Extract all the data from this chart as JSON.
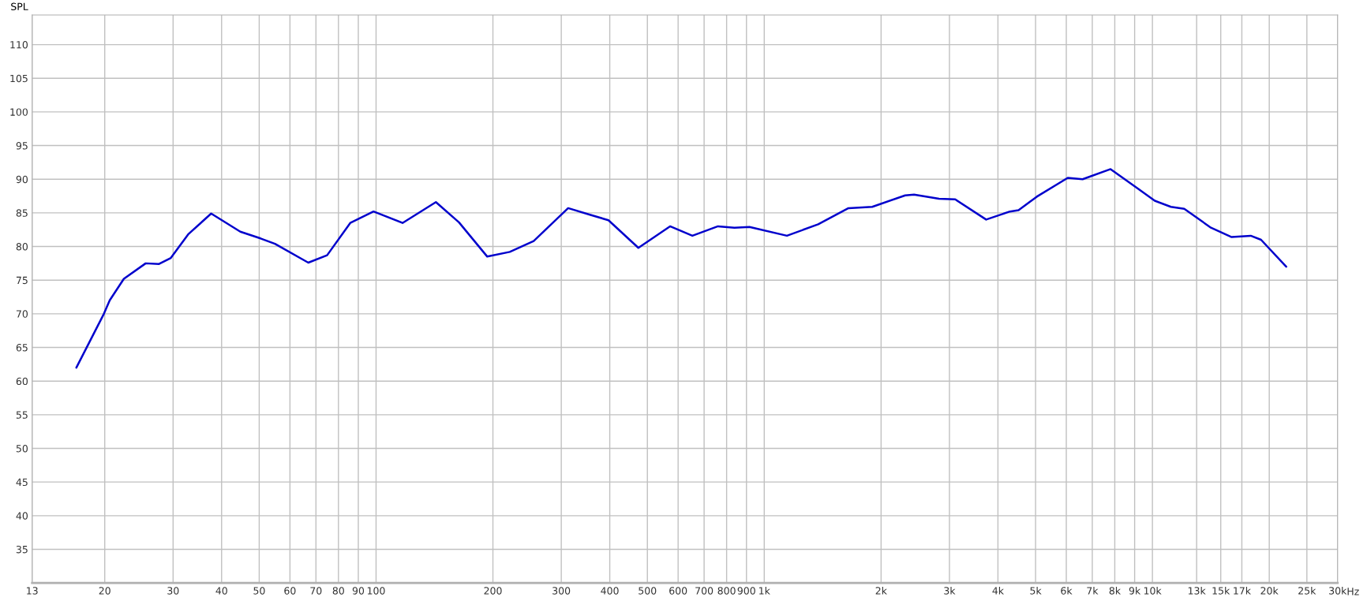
{
  "chart_data": {
    "type": "line",
    "ylabel": "SPL",
    "log": "x",
    "grid": true,
    "line_style": "solid",
    "marker": "none",
    "xlim": [
      13,
      30000
    ],
    "ylim": [
      30,
      114.4
    ],
    "xticks": [
      13,
      20,
      30,
      40,
      50,
      60,
      70,
      80,
      90,
      100,
      200,
      300,
      400,
      500,
      600,
      700,
      800,
      900,
      {
        "value": 1000,
        "label": "1k"
      },
      {
        "value": 2000,
        "label": "2k"
      },
      {
        "value": 3000,
        "label": "3k"
      },
      {
        "value": 4000,
        "label": "4k"
      },
      {
        "value": 5000,
        "label": "5k"
      },
      {
        "value": 6000,
        "label": "6k"
      },
      {
        "value": 7000,
        "label": "7k"
      },
      {
        "value": 8000,
        "label": "8k"
      },
      {
        "value": 9000,
        "label": "9k"
      },
      {
        "value": 10000,
        "label": "10k"
      },
      {
        "value": 13000,
        "label": "13k"
      },
      {
        "value": 15000,
        "label": "15k"
      },
      {
        "value": 17000,
        "label": "17k"
      },
      {
        "value": 20000,
        "label": "20k"
      },
      {
        "value": 25000,
        "label": "25k"
      },
      {
        "value": 30000,
        "label": "30k"
      }
    ],
    "xlabel": "Hz",
    "yticks": [
      35,
      40,
      45,
      50,
      55,
      60,
      65,
      70,
      75,
      80,
      85,
      90,
      95,
      100,
      105,
      110
    ],
    "series": [
      {
        "color": "#0000cc",
        "x": [
          16.9,
          19.9,
          20.6,
          22.4,
          25.5,
          27.6,
          29.6,
          32.8,
          37.6,
          44.7,
          50.4,
          54.9,
          66.9,
          74.8,
          85.8,
          98.5,
          117,
          142.6,
          163.5,
          193.4,
          221,
          254.7,
          312.5,
          357,
          397,
          474,
          572,
          653,
          760,
          838,
          916,
          1144,
          1377,
          1648,
          1898,
          2307,
          2432,
          2821,
          3105,
          3730,
          4295,
          4520,
          5036,
          6053,
          6610,
          7803,
          9123,
          10140,
          11160,
          12080,
          14150,
          16000,
          17920,
          19050,
          22120
        ],
        "values": [
          62.0,
          70.0,
          72.0,
          75.2,
          77.5,
          77.4,
          78.3,
          81.8,
          84.9,
          82.2,
          81.2,
          80.4,
          77.6,
          78.7,
          83.5,
          85.2,
          83.5,
          86.6,
          83.6,
          78.5,
          79.2,
          80.8,
          85.7,
          84.7,
          83.9,
          79.8,
          83.0,
          81.6,
          83.0,
          82.8,
          82.9,
          81.6,
          83.3,
          85.7,
          85.9,
          87.6,
          87.7,
          87.1,
          87.0,
          84.0,
          85.2,
          85.4,
          87.4,
          90.2,
          90.0,
          91.5,
          88.7,
          86.8,
          85.9,
          85.6,
          82.8,
          81.4,
          81.6,
          81.0,
          77.0
        ]
      }
    ]
  }
}
